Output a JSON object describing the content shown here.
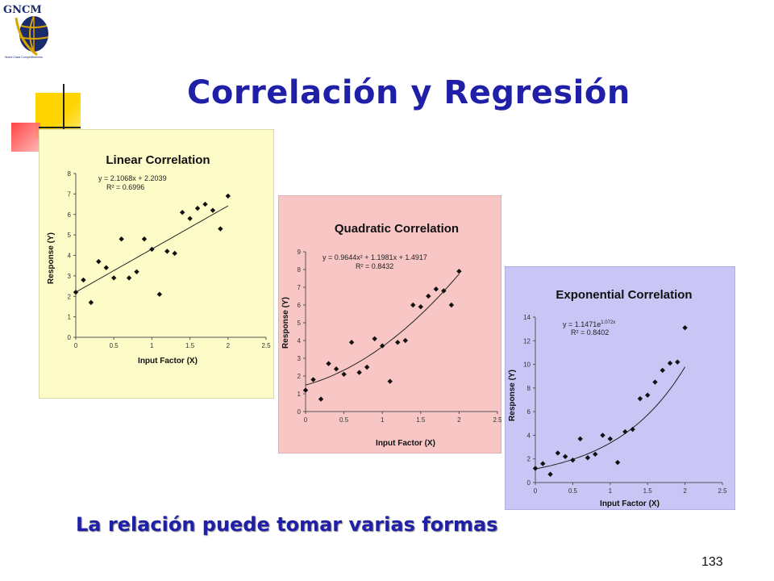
{
  "slide": {
    "title": "Correlación y Regresión",
    "subtitle": "La relación puede tomar varias formas",
    "page_number": "133",
    "logo": {
      "name": "GNCM",
      "tagline": "World Class Competitiveness"
    },
    "colors": {
      "title": "#1f1fa8",
      "linear_bg": "#fdfbc8",
      "quadratic_bg": "#f9c6c6",
      "exponential_bg": "#c9c6f5",
      "deco_yellow": "#ffd400",
      "deco_red": "#ff4040"
    }
  },
  "chart_data": [
    {
      "type": "scatter",
      "title": "Linear Correlation",
      "xlabel": "Input Factor (X)",
      "ylabel": "Response (Y)",
      "xlim": [
        0,
        2.5
      ],
      "ylim": [
        0,
        8
      ],
      "xticks": [
        "0",
        "0.5",
        "1",
        "1.5",
        "2",
        "2.5"
      ],
      "yticks": [
        "0",
        "1",
        "2",
        "3",
        "4",
        "5",
        "6",
        "7",
        "8"
      ],
      "equation": "y = 2.1068x + 2.2039",
      "r2": "R² = 0.6996",
      "trendline": {
        "kind": "linear",
        "a": 2.1068,
        "b": 2.2039,
        "x_range": [
          0,
          2
        ]
      },
      "points": [
        [
          0,
          2.2
        ],
        [
          0.1,
          2.8
        ],
        [
          0.2,
          1.7
        ],
        [
          0.3,
          3.7
        ],
        [
          0.4,
          3.4
        ],
        [
          0.5,
          2.9
        ],
        [
          0.6,
          4.8
        ],
        [
          0.7,
          2.9
        ],
        [
          0.8,
          3.2
        ],
        [
          0.9,
          4.8
        ],
        [
          1.0,
          4.3
        ],
        [
          1.1,
          2.1
        ],
        [
          1.2,
          4.2
        ],
        [
          1.3,
          4.1
        ],
        [
          1.4,
          6.1
        ],
        [
          1.5,
          5.8
        ],
        [
          1.6,
          6.3
        ],
        [
          1.7,
          6.5
        ],
        [
          1.8,
          6.2
        ],
        [
          1.9,
          5.3
        ],
        [
          2.0,
          6.9
        ]
      ]
    },
    {
      "type": "scatter",
      "title": "Quadratic Correlation",
      "xlabel": "Input Factor (X)",
      "ylabel": "Response (Y)",
      "xlim": [
        0,
        2.5
      ],
      "ylim": [
        0,
        9
      ],
      "xticks": [
        "0",
        "0.5",
        "1",
        "1.5",
        "2",
        "2.5"
      ],
      "yticks": [
        "0",
        "1",
        "2",
        "3",
        "4",
        "5",
        "6",
        "7",
        "8",
        "9"
      ],
      "equation": "y = 0.9644x² + 1.1981x + 1.4917",
      "r2": "R² = 0.8432",
      "trendline": {
        "kind": "quadratic",
        "a": 0.9644,
        "b": 1.1981,
        "c": 1.4917,
        "x_range": [
          0,
          2
        ]
      },
      "points": [
        [
          0,
          1.2
        ],
        [
          0.1,
          1.8
        ],
        [
          0.2,
          0.7
        ],
        [
          0.3,
          2.7
        ],
        [
          0.4,
          2.4
        ],
        [
          0.5,
          2.1
        ],
        [
          0.6,
          3.9
        ],
        [
          0.7,
          2.2
        ],
        [
          0.8,
          2.5
        ],
        [
          0.9,
          4.1
        ],
        [
          1.0,
          3.7
        ],
        [
          1.1,
          1.7
        ],
        [
          1.2,
          3.9
        ],
        [
          1.3,
          4.0
        ],
        [
          1.4,
          6.0
        ],
        [
          1.5,
          5.9
        ],
        [
          1.6,
          6.5
        ],
        [
          1.7,
          6.9
        ],
        [
          1.8,
          6.8
        ],
        [
          1.9,
          6.0
        ],
        [
          2.0,
          7.9
        ]
      ]
    },
    {
      "type": "scatter",
      "title": "Exponential Correlation",
      "xlabel": "Input Factor (X)",
      "ylabel": "Response (Y)",
      "xlim": [
        0,
        2.5
      ],
      "ylim": [
        0,
        14
      ],
      "xticks": [
        "0",
        "0.5",
        "1",
        "1.5",
        "2",
        "2.5"
      ],
      "yticks": [
        "0",
        "2",
        "4",
        "6",
        "8",
        "10",
        "12",
        "14"
      ],
      "equation": "y = 1.1471e",
      "equation_exponent": "1.072x",
      "r2": "R² = 0.8402",
      "trendline": {
        "kind": "exponential",
        "a": 1.1471,
        "b": 1.072,
        "x_range": [
          0,
          2
        ]
      },
      "points": [
        [
          0,
          1.2
        ],
        [
          0.1,
          1.6
        ],
        [
          0.2,
          0.7
        ],
        [
          0.3,
          2.5
        ],
        [
          0.4,
          2.2
        ],
        [
          0.5,
          1.9
        ],
        [
          0.6,
          3.7
        ],
        [
          0.7,
          2.1
        ],
        [
          0.8,
          2.4
        ],
        [
          0.9,
          4.0
        ],
        [
          1.0,
          3.7
        ],
        [
          1.1,
          1.7
        ],
        [
          1.2,
          4.3
        ],
        [
          1.3,
          4.5
        ],
        [
          1.4,
          7.1
        ],
        [
          1.5,
          7.4
        ],
        [
          1.6,
          8.5
        ],
        [
          1.7,
          9.5
        ],
        [
          1.8,
          10.1
        ],
        [
          1.9,
          10.2
        ],
        [
          2.0,
          13.1
        ]
      ]
    }
  ]
}
